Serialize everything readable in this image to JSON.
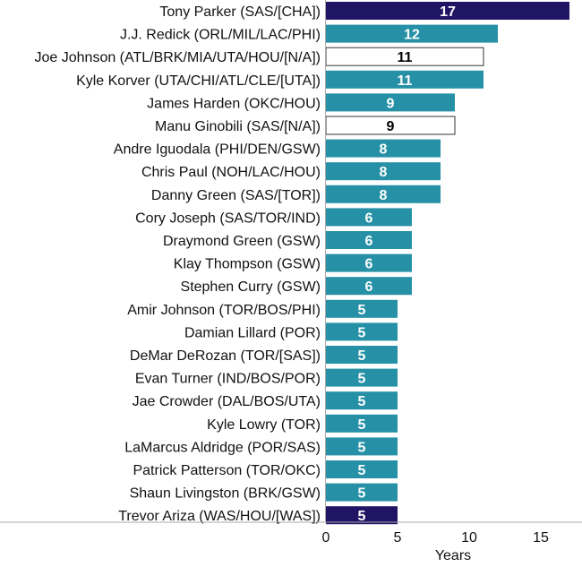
{
  "chart_data": {
    "type": "bar",
    "orientation": "horizontal",
    "title": "",
    "xlabel": "Years",
    "ylabel": "",
    "xlim": [
      0,
      17
    ],
    "xticks": [
      0,
      5,
      10,
      15
    ],
    "grid": false,
    "legend": "none",
    "categories": [
      "Tony Parker (SAS/[CHA])",
      "J.J. Redick (ORL/MIL/LAC/PHI)",
      "Joe Johnson (ATL/BRK/MIA/UTA/HOU/[N/A])",
      "Kyle Korver (UTA/CHI/ATL/CLE/[UTA])",
      "James Harden (OKC/HOU)",
      "Manu Ginobili (SAS/[N/A])",
      "Andre Iguodala (PHI/DEN/GSW)",
      "Chris Paul (NOH/LAC/HOU)",
      "Danny Green (SAS/[TOR])",
      "Cory Joseph (SAS/TOR/IND)",
      "Draymond Green (GSW)",
      "Klay Thompson (GSW)",
      "Stephen Curry (GSW)",
      "Amir Johnson (TOR/BOS/PHI)",
      "Damian Lillard (POR)",
      "DeMar DeRozan (TOR/[SAS])",
      "Evan Turner (IND/BOS/POR)",
      "Jae Crowder (DAL/BOS/UTA)",
      "Kyle Lowry (TOR)",
      "LaMarcus Aldridge (POR/SAS)",
      "Patrick Patterson (TOR/OKC)",
      "Shaun Livingston (BRK/GSW)",
      "Trevor Ariza (WAS/HOU/[WAS])"
    ],
    "values": [
      17,
      12,
      11,
      11,
      9,
      9,
      8,
      8,
      8,
      6,
      6,
      6,
      6,
      5,
      5,
      5,
      5,
      5,
      5,
      5,
      5,
      5,
      5
    ],
    "bar_styles": [
      "navy",
      "teal",
      "white",
      "teal",
      "teal",
      "white",
      "teal",
      "teal",
      "teal",
      "teal",
      "teal",
      "teal",
      "teal",
      "teal",
      "teal",
      "teal",
      "teal",
      "teal",
      "teal",
      "teal",
      "teal",
      "teal",
      "navy"
    ],
    "colors": {
      "navy": "#201464",
      "teal": "#2590a6",
      "white": "#ffffff",
      "white_outline": "#333333",
      "label_on_dark": "#ffffff",
      "label_on_white": "#000000",
      "axis": "#aaaaaa"
    }
  }
}
